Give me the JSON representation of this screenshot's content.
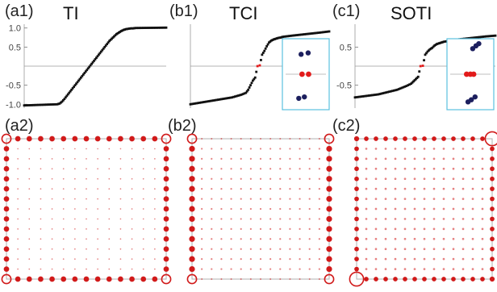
{
  "figure": {
    "top_row": [
      {
        "label": "(a1)",
        "title": "TI"
      },
      {
        "label": "(b1)",
        "title": "TCI"
      },
      {
        "label": "(c1)",
        "title": "SOTI"
      }
    ],
    "bottom_row": [
      {
        "label": "(a2)"
      },
      {
        "label": "(b2)"
      },
      {
        "label": "(c2)"
      }
    ]
  },
  "colors": {
    "spectrum_points": "#111111",
    "zero_modes": "#e21b1b",
    "inset_points": "#1c1f5e",
    "inset_frame": "#5bc0de",
    "lattice_lines": "#b0b0b0",
    "density": "#d11a1a"
  },
  "chart_data": [
    {
      "panel": "(a1)",
      "type": "scatter",
      "title": "TI",
      "ylim": [
        -1.1,
        1.1
      ],
      "yticks": [
        "1.0",
        "0.5",
        "-0.5",
        "-1.0"
      ],
      "x": [
        0,
        14,
        15,
        16,
        17,
        18,
        19,
        20,
        21,
        22,
        23,
        24,
        25,
        26,
        27,
        28,
        29,
        30,
        31,
        32,
        33,
        34,
        35,
        36,
        37,
        38,
        39,
        40,
        41,
        42,
        43,
        44,
        45,
        46,
        47,
        60
      ],
      "y": [
        -1.03,
        -1.0,
        -0.98,
        -0.93,
        -0.86,
        -0.78,
        -0.7,
        -0.62,
        -0.54,
        -0.46,
        -0.38,
        -0.3,
        -0.22,
        -0.14,
        -0.06,
        0.02,
        0.1,
        0.18,
        0.26,
        0.34,
        0.42,
        0.5,
        0.58,
        0.66,
        0.72,
        0.78,
        0.84,
        0.88,
        0.92,
        0.95,
        0.97,
        0.98,
        0.99,
        0.99,
        1.0,
        1.01
      ]
    },
    {
      "panel": "(b1)",
      "type": "scatter",
      "title": "TCI",
      "ylim": [
        -1.1,
        1.1
      ],
      "yticks": [],
      "x": [
        0,
        10,
        14,
        18,
        22,
        24,
        25,
        26,
        27,
        28,
        29,
        30,
        31,
        32,
        33,
        34,
        35,
        36,
        37,
        38,
        39,
        40,
        44,
        50,
        56,
        60
      ],
      "y": [
        -1.0,
        -0.9,
        -0.86,
        -0.82,
        -0.75,
        -0.7,
        -0.62,
        -0.5,
        -0.38,
        -0.3,
        0.0,
        0.02,
        0.3,
        0.4,
        0.52,
        0.62,
        0.67,
        0.7,
        0.72,
        0.74,
        0.75,
        0.77,
        0.8,
        0.84,
        0.88,
        0.91
      ],
      "zero_modes": {
        "x": [
          29,
          30
        ],
        "y": [
          0.0,
          0.02
        ]
      },
      "inset": {
        "points": [
          [
            0.4,
            0.78
          ],
          [
            0.55,
            0.8
          ],
          [
            0.35,
            0.16
          ],
          [
            0.47,
            0.18
          ]
        ],
        "zero_modes": [
          [
            0.42,
            0.5
          ],
          [
            0.56,
            0.5
          ]
        ]
      }
    },
    {
      "panel": "(c1)",
      "type": "scatter",
      "title": "SOTI",
      "ylim": [
        -1.1,
        1.1
      ],
      "yticks": [
        "0.5",
        "-0.5"
      ],
      "x": [
        0,
        10,
        14,
        18,
        22,
        24,
        25,
        26,
        27,
        28,
        29,
        30,
        31,
        32,
        33,
        34,
        35,
        36,
        37,
        38,
        40,
        44,
        50,
        56,
        60
      ],
      "y": [
        -0.82,
        -0.74,
        -0.68,
        -0.62,
        -0.52,
        -0.46,
        -0.4,
        -0.34,
        -0.28,
        0.0,
        0.01,
        0.3,
        0.38,
        0.44,
        0.48,
        0.54,
        0.58,
        0.6,
        0.62,
        0.64,
        0.66,
        0.7,
        0.74,
        0.78,
        0.8
      ],
      "zero_modes": {
        "x": [
          28,
          29
        ],
        "y": [
          0.0,
          0.01
        ]
      },
      "inset": {
        "points": [
          [
            0.55,
            0.86
          ],
          [
            0.62,
            0.9
          ],
          [
            0.68,
            0.93
          ],
          [
            0.6,
            0.18
          ],
          [
            0.52,
            0.14
          ],
          [
            0.45,
            0.11
          ]
        ],
        "zero_modes": [
          [
            0.42,
            0.5
          ],
          [
            0.5,
            0.5
          ],
          [
            0.57,
            0.5
          ]
        ]
      }
    },
    {
      "panel": "(a2)",
      "type": "heatmap",
      "grid_size": 15,
      "corner_density": 1.0,
      "edge_density": 0.55,
      "bulk_density": 0.05
    },
    {
      "panel": "(b2)",
      "type": "heatmap",
      "grid_size": 15,
      "corner_density": 1.0,
      "left_right_edge_density": 0.6,
      "top_bottom_edge_density": 0.08,
      "bulk_density": 0.1
    },
    {
      "panel": "(c2)",
      "type": "heatmap",
      "grid_size": 15,
      "large_corners": [
        "top-right",
        "bottom-left"
      ],
      "corner_density": 1.6,
      "edge_density": 0.45,
      "bulk_density": 0.15
    }
  ]
}
